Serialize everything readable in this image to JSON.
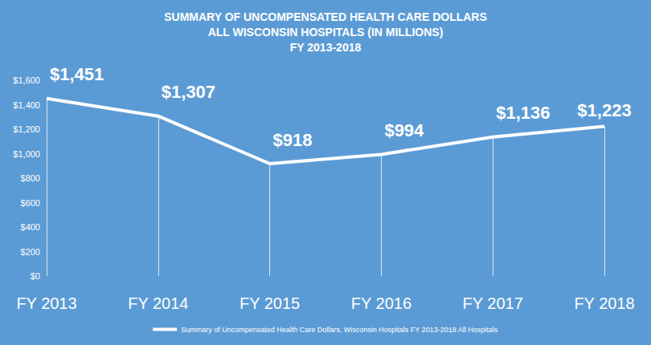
{
  "chart_data": {
    "type": "line",
    "title": "SUMMARY OF UNCOMPENSATED HEALTH CARE DOLLARS\nALL WISCONSIN HOSPITALS (IN MILLIONS)\nFY 2013-2018",
    "categories": [
      "FY 2013",
      "FY 2014",
      "FY 2015",
      "FY 2016",
      "FY 2017",
      "FY 2018"
    ],
    "series": [
      {
        "name": "Summary of Uncompensated Health Care Dollars, Wisconsin Hospitals FY 2013-2018 All Hospitals",
        "color": "#ffffff",
        "values": [
          1451,
          1307,
          918,
          994,
          1136,
          1223
        ],
        "value_labels": [
          "$1,451",
          "$1,307",
          "$918",
          "$994",
          "$1,136",
          "$1,223"
        ]
      }
    ],
    "ylim": [
      0,
      1600
    ],
    "yticks": [
      {
        "value": 0,
        "label": "$0"
      },
      {
        "value": 200,
        "label": "$200"
      },
      {
        "value": 400,
        "label": "$400"
      },
      {
        "value": 600,
        "label": "$600"
      },
      {
        "value": 800,
        "label": "$800"
      },
      {
        "value": 1000,
        "label": "$1,000"
      },
      {
        "value": 1200,
        "label": "$1,200"
      },
      {
        "value": 1400,
        "label": "$1,400"
      },
      {
        "value": 1600,
        "label": "$1,600"
      }
    ],
    "grid": false,
    "legend": "bottom",
    "data_labels": true
  }
}
